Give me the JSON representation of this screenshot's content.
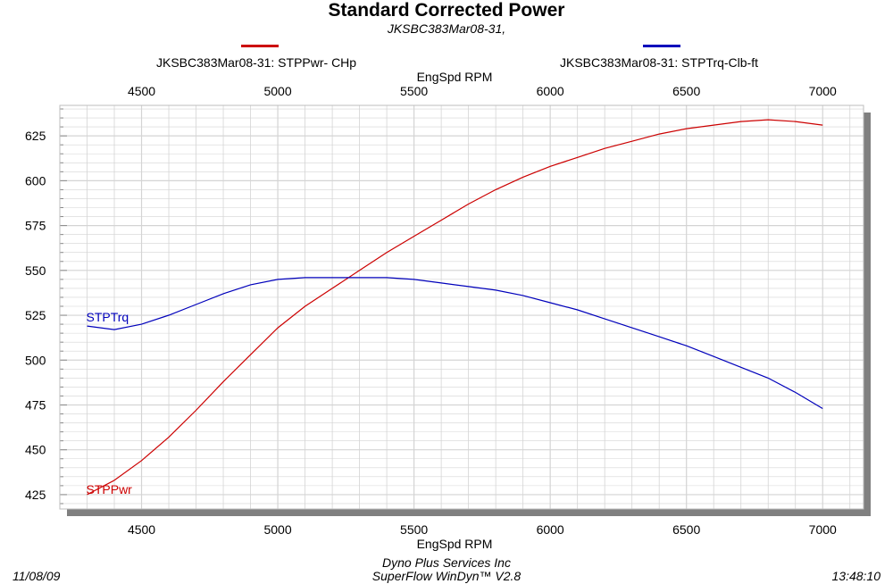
{
  "colors": {
    "power": "#cc0000",
    "torque": "#0000bb",
    "grid": "#d4d4d4",
    "shadow": "#808080"
  },
  "chart_data": {
    "type": "line",
    "title": "Standard Corrected Power",
    "subtitle": "JKSBC383Mar08-31,",
    "xlabel_top": "EngSpd  RPM",
    "xlabel_bottom": "EngSpd  RPM",
    "xlim": [
      4200,
      7150
    ],
    "ylim": [
      417,
      642
    ],
    "x_ticks": [
      4500,
      5000,
      5500,
      6000,
      6500,
      7000
    ],
    "y_ticks": [
      425,
      450,
      475,
      500,
      525,
      550,
      575,
      600,
      625
    ],
    "grid": true,
    "legend_position": "top",
    "series": [
      {
        "name": "JKSBC383Mar08-31: STPPwr- CHp",
        "label": "STPPwr",
        "color": "#cc0000",
        "x": [
          4300,
          4400,
          4500,
          4600,
          4700,
          4800,
          4900,
          5000,
          5100,
          5200,
          5300,
          5400,
          5500,
          5600,
          5700,
          5800,
          5900,
          6000,
          6100,
          6200,
          6300,
          6400,
          6500,
          6600,
          6700,
          6800,
          6900,
          7000
        ],
        "y": [
          425,
          433,
          444,
          457,
          472,
          488,
          503,
          518,
          530,
          540,
          550,
          560,
          569,
          578,
          587,
          595,
          602,
          608,
          613,
          618,
          622,
          626,
          629,
          631,
          633,
          634,
          633,
          631
        ]
      },
      {
        "name": "JKSBC383Mar08-31: STPTrq-Clb-ft",
        "label": "STPTrq",
        "color": "#0000bb",
        "x": [
          4300,
          4400,
          4500,
          4600,
          4700,
          4800,
          4900,
          5000,
          5100,
          5200,
          5300,
          5400,
          5500,
          5600,
          5700,
          5800,
          5900,
          6000,
          6100,
          6200,
          6300,
          6400,
          6500,
          6600,
          6700,
          6800,
          6900,
          7000
        ],
        "y": [
          519,
          517,
          520,
          525,
          531,
          537,
          542,
          545,
          546,
          546,
          546,
          546,
          545,
          543,
          541,
          539,
          536,
          532,
          528,
          523,
          518,
          513,
          508,
          502,
          496,
          490,
          482,
          473
        ]
      }
    ]
  },
  "footer": {
    "date": "11/08/09",
    "company": "Dyno Plus Services Inc",
    "software": "SuperFlow WinDyn™ V2.8",
    "time": "13:48:10"
  }
}
